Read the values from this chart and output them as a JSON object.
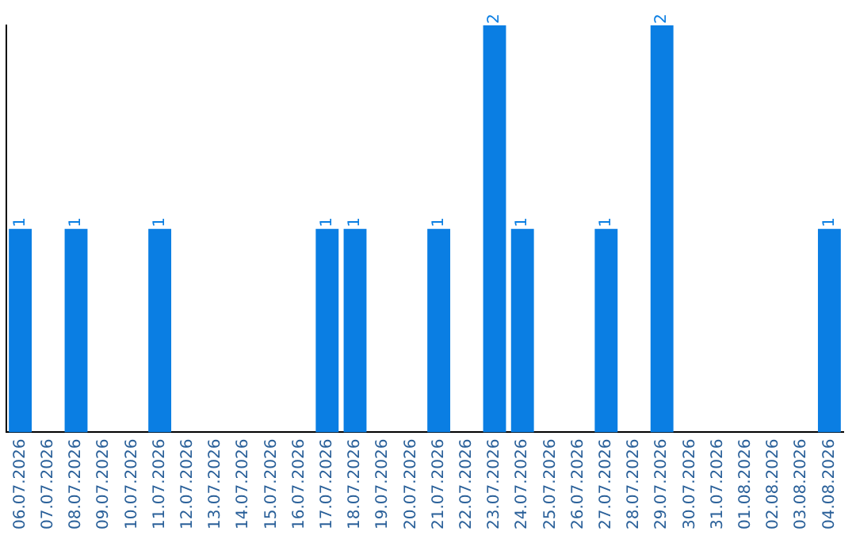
{
  "chart_data": {
    "type": "bar",
    "categories": [
      "06.07.2026",
      "07.07.2026",
      "08.07.2026",
      "09.07.2026",
      "10.07.2026",
      "11.07.2026",
      "12.07.2026",
      "13.07.2026",
      "14.07.2026",
      "15.07.2026",
      "16.07.2026",
      "17.07.2026",
      "18.07.2026",
      "19.07.2026",
      "20.07.2026",
      "21.07.2026",
      "22.07.2026",
      "23.07.2026",
      "24.07.2026",
      "25.07.2026",
      "26.07.2026",
      "27.07.2026",
      "28.07.2026",
      "29.07.2026",
      "30.07.2026",
      "31.07.2026",
      "01.08.2026",
      "02.08.2026",
      "03.08.2026",
      "04.08.2026"
    ],
    "values": [
      1,
      null,
      1,
      null,
      null,
      1,
      null,
      null,
      null,
      null,
      null,
      1,
      1,
      null,
      null,
      1,
      null,
      2,
      1,
      null,
      null,
      1,
      null,
      2,
      null,
      null,
      null,
      null,
      null,
      1
    ],
    "value_labels": [
      "1",
      null,
      "1",
      null,
      null,
      "1",
      null,
      null,
      null,
      null,
      null,
      "1",
      "1",
      null,
      null,
      "1",
      null,
      "2",
      "1",
      null,
      null,
      "1",
      null,
      "2",
      null,
      null,
      null,
      null,
      null,
      "1"
    ],
    "color": "#0a7ee3",
    "tick_labels": "x",
    "grid": false,
    "legend": false
  }
}
